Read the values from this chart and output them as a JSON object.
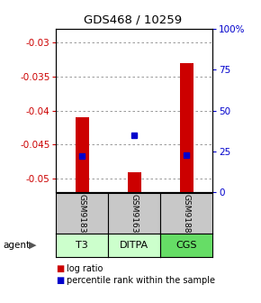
{
  "title": "GDS468 / 10259",
  "samples": [
    "GSM9183",
    "GSM9163",
    "GSM9188"
  ],
  "agents": [
    "T3",
    "DITPA",
    "CGS"
  ],
  "log_ratios": [
    -0.041,
    -0.049,
    -0.033
  ],
  "percentile_ranks": [
    22,
    35,
    23
  ],
  "ylim_left": [
    -0.052,
    -0.028
  ],
  "yticks_left": [
    -0.05,
    -0.045,
    -0.04,
    -0.035,
    -0.03
  ],
  "ytick_labels_left": [
    "-0.05",
    "-0.045",
    "-0.04",
    "-0.035",
    "-0.03"
  ],
  "yticks_right": [
    0,
    25,
    50,
    75,
    100
  ],
  "ylim_right": [
    0,
    100
  ],
  "bar_color": "#cc0000",
  "dot_color": "#0000cc",
  "sample_box_color": "#c8c8c8",
  "agent_colors": [
    "#ccffcc",
    "#ccffcc",
    "#66dd66"
  ],
  "legend_log_color": "#cc0000",
  "legend_pct_color": "#0000cc",
  "left_axis_color": "#cc0000",
  "right_axis_color": "#0000cc",
  "grid_color": "#888888",
  "bar_width": 0.25
}
